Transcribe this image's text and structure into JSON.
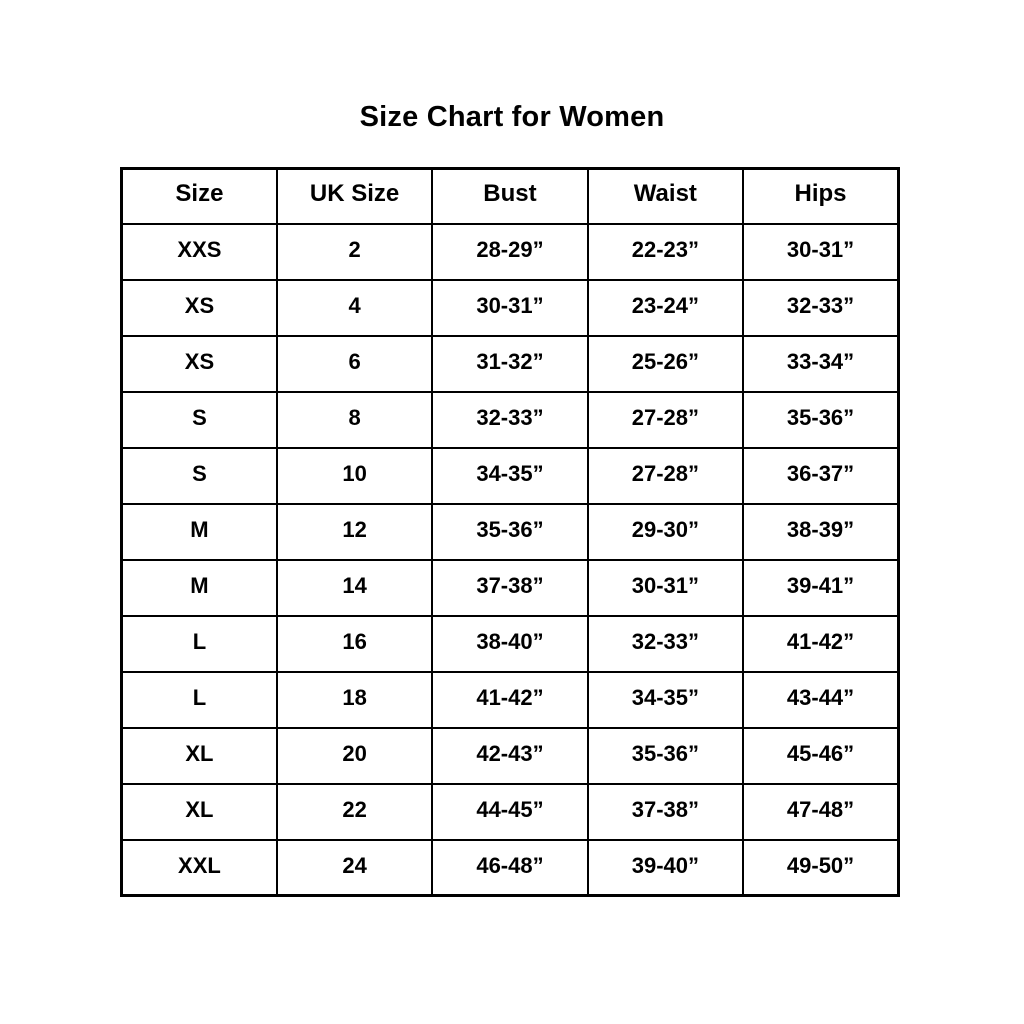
{
  "title": "Size Chart for Women",
  "chart_data": {
    "type": "table",
    "title": "Size Chart for Women",
    "columns": [
      "Size",
      "UK Size",
      "Bust",
      "Waist",
      "Hips"
    ],
    "rows": [
      [
        "XXS",
        "2",
        "28-29”",
        "22-23”",
        "30-31”"
      ],
      [
        "XS",
        "4",
        "30-31”",
        "23-24”",
        "32-33”"
      ],
      [
        "XS",
        "6",
        "31-32”",
        "25-26”",
        "33-34”"
      ],
      [
        "S",
        "8",
        "32-33”",
        "27-28”",
        "35-36”"
      ],
      [
        "S",
        "10",
        "34-35”",
        "27-28”",
        "36-37”"
      ],
      [
        "M",
        "12",
        "35-36”",
        "29-30”",
        "38-39”"
      ],
      [
        "M",
        "14",
        "37-38”",
        "30-31”",
        "39-41”"
      ],
      [
        "L",
        "16",
        "38-40”",
        "32-33”",
        "41-42”"
      ],
      [
        "L",
        "18",
        "41-42”",
        "34-35”",
        "43-44”"
      ],
      [
        "XL",
        "20",
        "42-43”",
        "35-36”",
        "45-46”"
      ],
      [
        "XL",
        "22",
        "44-45”",
        "37-38”",
        "47-48”"
      ],
      [
        "XXL",
        "24",
        "46-48”",
        "39-40”",
        "49-50”"
      ]
    ],
    "text_color": "#000000",
    "border_color": "#000000",
    "background": "#ffffff",
    "layout": {
      "grid": true,
      "header_row": true
    }
  }
}
